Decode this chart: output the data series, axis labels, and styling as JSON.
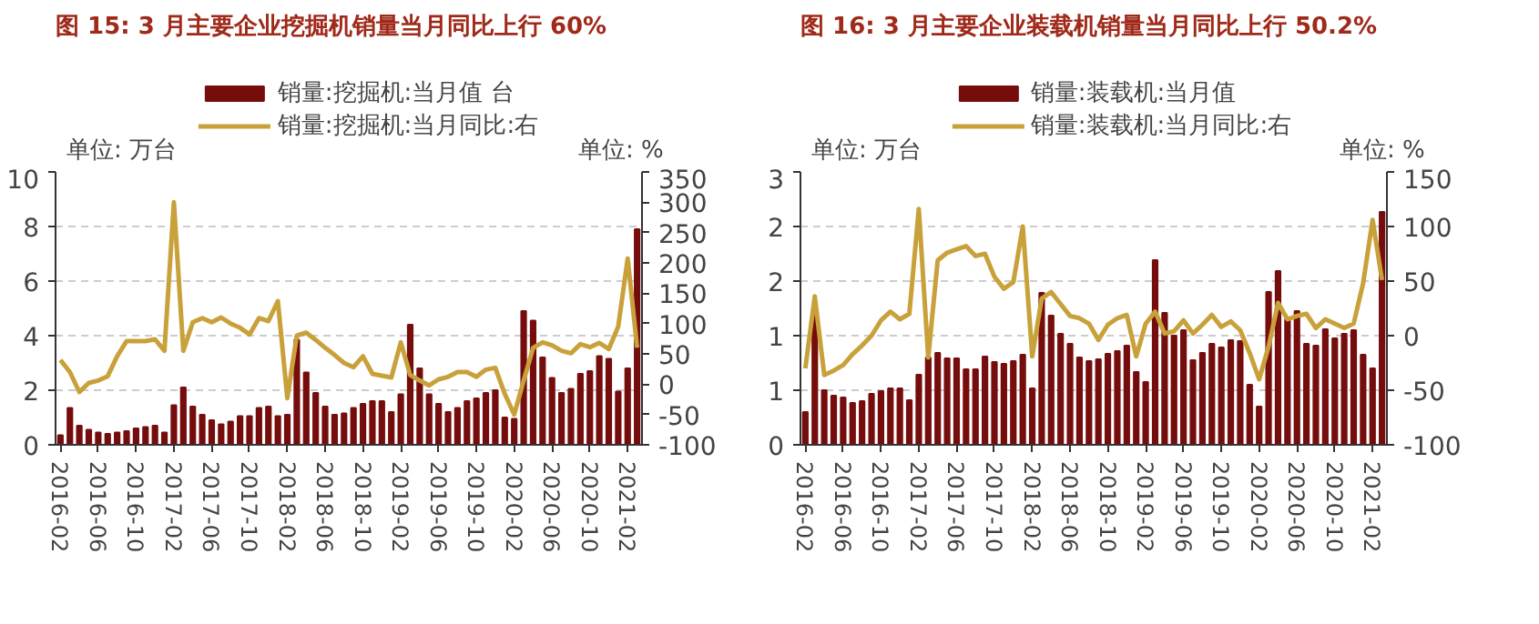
{
  "chart_data": [
    {
      "type": "bar",
      "title": "图 15:  3 月主要企业挖掘机销量当月同比上行 60%",
      "ylabel": "单位:  万台",
      "y2label": "单位:  %",
      "x": [
        "2016-02",
        "2016-03",
        "2016-04",
        "2016-05",
        "2016-06",
        "2016-07",
        "2016-08",
        "2016-09",
        "2016-10",
        "2016-11",
        "2016-12",
        "2017-01",
        "2017-02",
        "2017-03",
        "2017-04",
        "2017-05",
        "2017-06",
        "2017-07",
        "2017-08",
        "2017-09",
        "2017-10",
        "2017-11",
        "2017-12",
        "2018-01",
        "2018-02",
        "2018-03",
        "2018-04",
        "2018-05",
        "2018-06",
        "2018-07",
        "2018-08",
        "2018-09",
        "2018-10",
        "2018-11",
        "2018-12",
        "2019-01",
        "2019-02",
        "2019-03",
        "2019-04",
        "2019-05",
        "2019-06",
        "2019-07",
        "2019-08",
        "2019-09",
        "2019-10",
        "2019-11",
        "2019-12",
        "2020-01",
        "2020-02",
        "2020-03",
        "2020-04",
        "2020-05",
        "2020-06",
        "2020-07",
        "2020-08",
        "2020-09",
        "2020-10",
        "2020-11",
        "2020-12",
        "2021-01",
        "2021-02",
        "2021-03"
      ],
      "series": [
        {
          "name": "销量:挖掘机:当月值 台",
          "color": "#760d0d",
          "values": [
            0.35,
            1.35,
            0.7,
            0.55,
            0.45,
            0.4,
            0.45,
            0.5,
            0.6,
            0.65,
            0.7,
            0.45,
            1.45,
            2.1,
            1.4,
            1.1,
            0.9,
            0.75,
            0.85,
            1.05,
            1.05,
            1.35,
            1.4,
            1.05,
            1.1,
            3.85,
            2.65,
            1.9,
            1.4,
            1.1,
            1.15,
            1.35,
            1.5,
            1.6,
            1.6,
            1.2,
            1.85,
            4.4,
            2.8,
            1.85,
            1.5,
            1.2,
            1.35,
            1.6,
            1.7,
            1.9,
            2.0,
            1.0,
            0.95,
            4.9,
            4.55,
            3.2,
            2.45,
            1.9,
            2.05,
            2.6,
            2.7,
            3.25,
            3.15,
            1.95,
            2.8,
            7.9
          ]
        },
        {
          "name": "销量:挖掘机:当月同比:右",
          "type": "line",
          "axis": "y2",
          "color": "#c9a13b",
          "values": [
            40,
            20,
            -13,
            2,
            6,
            13,
            46,
            71,
            71,
            71,
            74,
            55,
            300,
            55,
            102,
            109,
            102,
            110,
            100,
            93,
            82,
            109,
            104,
            137,
            -23,
            80,
            85,
            73,
            60,
            48,
            35,
            28,
            46,
            17,
            14,
            11,
            69,
            15,
            6,
            -2,
            8,
            12,
            20,
            20,
            12,
            24,
            27,
            -16,
            -50,
            6,
            60,
            69,
            64,
            55,
            51,
            66,
            61,
            68,
            58,
            95,
            207,
            60
          ]
        }
      ],
      "xlim": [
        "2016-01-16",
        "2021-03-17"
      ],
      "xticks": [
        "2016-02",
        "2016-06",
        "2016-10",
        "2017-02",
        "2017-06",
        "2017-10",
        "2018-02",
        "2018-06",
        "2018-10",
        "2019-02",
        "2019-06",
        "2019-10",
        "2020-02",
        "2020-06",
        "2020-10",
        "2021-02"
      ],
      "ylim": [
        0,
        10
      ],
      "yticks": [
        0,
        2,
        4,
        6,
        8,
        10
      ],
      "y2lim": [
        -100,
        350
      ],
      "y2ticks": [
        -100,
        -50,
        0,
        50,
        100,
        150,
        200,
        250,
        300,
        350
      ],
      "grid": "y",
      "legend": "top"
    },
    {
      "type": "bar",
      "title": "图 16:  3 月主要企业装载机销量当月同比上行 50.2%",
      "ylabel": "单位:  万台",
      "y2label": "单位:  %",
      "x": [
        "2016-02",
        "2016-03",
        "2016-04",
        "2016-05",
        "2016-06",
        "2016-07",
        "2016-08",
        "2016-09",
        "2016-10",
        "2016-11",
        "2016-12",
        "2017-01",
        "2017-02",
        "2017-03",
        "2017-04",
        "2017-05",
        "2017-06",
        "2017-07",
        "2017-08",
        "2017-09",
        "2017-10",
        "2017-11",
        "2017-12",
        "2018-01",
        "2018-02",
        "2018-03",
        "2018-04",
        "2018-05",
        "2018-06",
        "2018-07",
        "2018-08",
        "2018-09",
        "2018-10",
        "2018-11",
        "2018-12",
        "2019-01",
        "2019-02",
        "2019-03",
        "2019-04",
        "2019-05",
        "2019-06",
        "2019-07",
        "2019-08",
        "2019-09",
        "2019-10",
        "2019-11",
        "2019-12",
        "2020-01",
        "2020-02",
        "2020-03",
        "2020-04",
        "2020-05",
        "2020-06",
        "2020-07",
        "2020-08",
        "2020-09",
        "2020-10",
        "2020-11",
        "2020-12",
        "2021-01",
        "2021-02",
        "2021-03"
      ],
      "series": [
        {
          "name": "销量:装载机:当月值",
          "color": "#760d0d",
          "values": [
            0.36,
            1.46,
            0.6,
            0.54,
            0.52,
            0.46,
            0.48,
            0.56,
            0.59,
            0.62,
            0.62,
            0.49,
            0.77,
            0.96,
            1.01,
            0.95,
            0.95,
            0.83,
            0.83,
            0.97,
            0.91,
            0.89,
            0.92,
            0.99,
            0.62,
            1.67,
            1.42,
            1.22,
            1.11,
            0.96,
            0.92,
            0.94,
            1.0,
            1.03,
            1.09,
            0.8,
            0.69,
            2.03,
            1.45,
            1.2,
            1.26,
            0.93,
            1.01,
            1.11,
            1.07,
            1.15,
            1.14,
            0.66,
            0.42,
            1.68,
            1.91,
            1.38,
            1.47,
            1.11,
            1.09,
            1.27,
            1.17,
            1.22,
            1.26,
            0.99,
            0.84,
            2.56
          ]
        },
        {
          "name": "销量:装载机:当月同比:右",
          "type": "line",
          "axis": "y2",
          "color": "#c9a13b",
          "values": [
            -30,
            36,
            -36,
            -32,
            -27,
            -17,
            -9,
            0,
            14,
            22,
            15,
            20,
            116,
            -20,
            69,
            76,
            79,
            82,
            73,
            75,
            54,
            43,
            49,
            100,
            -19,
            34,
            40,
            29,
            18,
            16,
            11,
            -4,
            10,
            16,
            19,
            -19,
            11,
            22,
            2,
            4,
            14,
            2,
            10,
            19,
            8,
            13,
            5,
            -16,
            -40,
            -10,
            30,
            15,
            18,
            20,
            7,
            15,
            11,
            7,
            11,
            48,
            106,
            51
          ]
        }
      ],
      "xlim": [
        "2016-01-16",
        "2021-03-17"
      ],
      "xticks": [
        "2016-02",
        "2016-06",
        "2016-10",
        "2017-02",
        "2017-06",
        "2017-10",
        "2018-02",
        "2018-06",
        "2018-10",
        "2019-02",
        "2019-06",
        "2019-10",
        "2020-02",
        "2020-06",
        "2020-10",
        "2021-02"
      ],
      "ylim": [
        0,
        3
      ],
      "yticks": [
        0,
        {
          "value": 0.6,
          "label": "1"
        },
        {
          "value": 1.2,
          "label": "1"
        },
        {
          "value": 1.8,
          "label": "2"
        },
        {
          "value": 2.4,
          "label": "2"
        },
        3
      ],
      "y2lim": [
        -100,
        150
      ],
      "y2ticks": [
        -100,
        -50,
        0,
        50,
        100,
        150
      ],
      "grid": "y",
      "legend": "top"
    }
  ]
}
